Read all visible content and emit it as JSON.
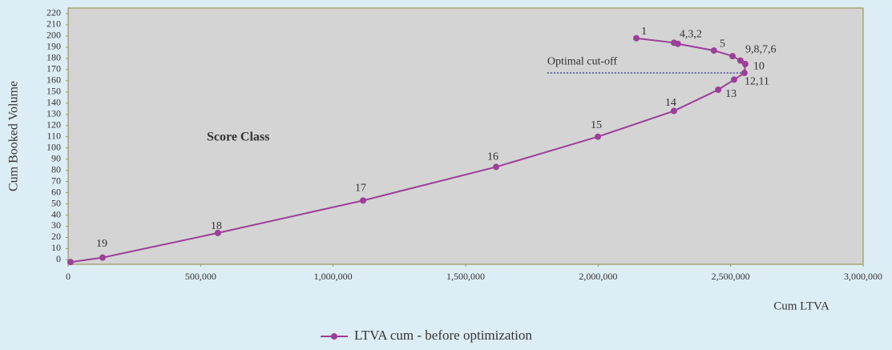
{
  "chart_data": {
    "type": "line",
    "xlabel": "Cum LTVA",
    "ylabel": "Cum Booked Volume",
    "inner_label": "Score Class",
    "annotation": {
      "text": "Optimal cut-off",
      "y": 167,
      "x": [
        1808000,
        2552000
      ]
    },
    "xlim": [
      0,
      3000000
    ],
    "xticks": [
      {
        "value": 0,
        "label": "0"
      },
      {
        "value": 500000,
        "label": "500,000"
      },
      {
        "value": 1000000,
        "label": "1,000,000"
      },
      {
        "value": 1500000,
        "label": "1,500,000"
      },
      {
        "value": 2000000,
        "label": "2,000,000"
      },
      {
        "value": 2500000,
        "label": "2,500,000"
      },
      {
        "value": 3000000,
        "label": "3,000,000"
      }
    ],
    "ylim": [
      -4,
      225
    ],
    "yticks": [
      0,
      10,
      20,
      30,
      40,
      50,
      60,
      70,
      80,
      90,
      100,
      110,
      120,
      130,
      140,
      150,
      160,
      170,
      180,
      190,
      200,
      210,
      220
    ],
    "legend": "bottom",
    "series": [
      {
        "name": "LTVA cum - before optimization",
        "color": "#9b3f98",
        "x": [
          2144000,
          2286000,
          2301000,
          2437000,
          2507000,
          2537000,
          2555000,
          2552000,
          2513000,
          2453000,
          2286000,
          1999000,
          1615000,
          1113000,
          565000,
          130000,
          9000
        ],
        "values": [
          198,
          194,
          193,
          187,
          182,
          178,
          175,
          167,
          161,
          152,
          133,
          110,
          83,
          53,
          24,
          2,
          -2
        ],
        "point_labels": [
          "1",
          "4,3,2",
          null,
          "5",
          "9,8,7,6",
          null,
          null,
          "10",
          "12,11",
          "13",
          "14",
          "15",
          "16",
          "17",
          "18",
          "19",
          null
        ]
      }
    ]
  }
}
